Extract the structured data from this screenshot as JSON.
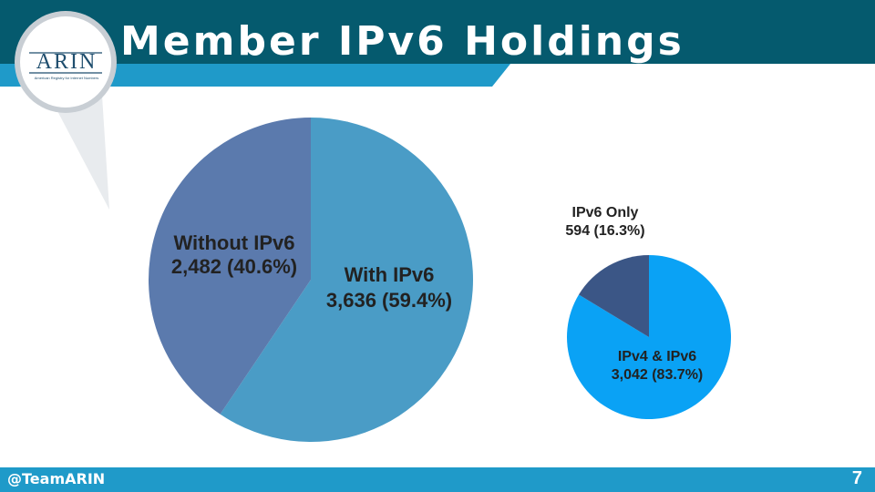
{
  "slide": {
    "title": "Member IPv6 Holdings",
    "footer_handle": "@TeamARIN",
    "page_number": "7",
    "logo_text": "ARIN",
    "logo_subtitle": "American Registry for Internet Numbers"
  },
  "colors": {
    "header_dark": "#055a6e",
    "header_accent": "#1f9ac9",
    "footer": "#1f9ac9",
    "with_ipv6": "#4a9cc6",
    "without_ipv6": "#5b7aad",
    "ipv4_and_ipv6": "#0aa2f5",
    "ipv6_only": "#3b5686"
  },
  "chart_data": [
    {
      "type": "pie",
      "title": "",
      "slices": [
        {
          "name": "With IPv6",
          "value": 3636,
          "display": "3,636 (59.4%)",
          "percent": 59.4
        },
        {
          "name": "Without IPv6",
          "value": 2482,
          "display": "2,482 (40.6%)",
          "percent": 40.6
        }
      ]
    },
    {
      "type": "pie",
      "title": "",
      "slices": [
        {
          "name": "IPv4 & IPv6",
          "value": 3042,
          "display": "3,042 (83.7%)",
          "percent": 83.7
        },
        {
          "name": "IPv6 Only",
          "value": 594,
          "display": "594 (16.3%)",
          "percent": 16.3
        }
      ]
    }
  ]
}
